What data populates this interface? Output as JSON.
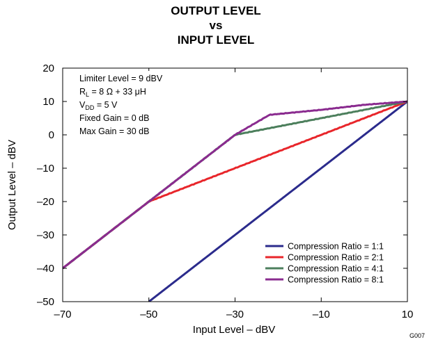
{
  "chart_data": {
    "type": "line",
    "title_lines": [
      "OUTPUT LEVEL",
      "vs",
      "INPUT LEVEL"
    ],
    "xlabel": "Input Level – dBV",
    "ylabel": "Output Level – dBV",
    "xlim": [
      -70,
      10
    ],
    "ylim": [
      -50,
      20
    ],
    "x_ticks": [
      -70,
      -50,
      -30,
      -10,
      10
    ],
    "x_tick_labels": [
      "–70",
      "–50",
      "–30",
      "–10",
      "10"
    ],
    "y_ticks": [
      -50,
      -40,
      -30,
      -20,
      -10,
      0,
      10,
      20
    ],
    "y_tick_labels": [
      "–50",
      "–40",
      "–30",
      "–20",
      "–10",
      "0",
      "10",
      "20"
    ],
    "grid": false,
    "legend_position": "bottom-right",
    "annotations": {
      "limiter": "Limiter Level = 9 dBV",
      "rl_main": "R",
      "rl_sub": "L",
      "rl_rest": " = 8 Ω + 33 μH",
      "vdd_main": "V",
      "vdd_sub": "DD",
      "vdd_rest": " = 5 V",
      "fixed_gain": "Fixed Gain = 0 dB",
      "max_gain": "Max Gain = 30 dB"
    },
    "figure_code": "G007",
    "series": [
      {
        "name": "Compression Ratio = 1:1",
        "color": "#2b2b8c",
        "x": [
          -50,
          10
        ],
        "y": [
          -50,
          10
        ]
      },
      {
        "name": "Compression Ratio = 2:1",
        "color": "#e8262b",
        "x": [
          -70,
          -50,
          -40,
          -30,
          -20,
          -10,
          0,
          10
        ],
        "y": [
          -40,
          -20,
          -15,
          -10,
          -5,
          0,
          5,
          10
        ]
      },
      {
        "name": "Compression Ratio = 4:1",
        "color": "#4c7f5c",
        "x": [
          -70,
          -50,
          -40,
          -30,
          -20,
          -10,
          0,
          10
        ],
        "y": [
          -40,
          -20,
          -10,
          0,
          2.5,
          5,
          7.5,
          10
        ]
      },
      {
        "name": "Compression Ratio = 8:1",
        "color": "#8a2b8f",
        "x": [
          -70,
          -50,
          -40,
          -30,
          -22,
          -10,
          0,
          10
        ],
        "y": [
          -40,
          -20,
          -10,
          0,
          6,
          7.5,
          9,
          10
        ]
      }
    ]
  }
}
